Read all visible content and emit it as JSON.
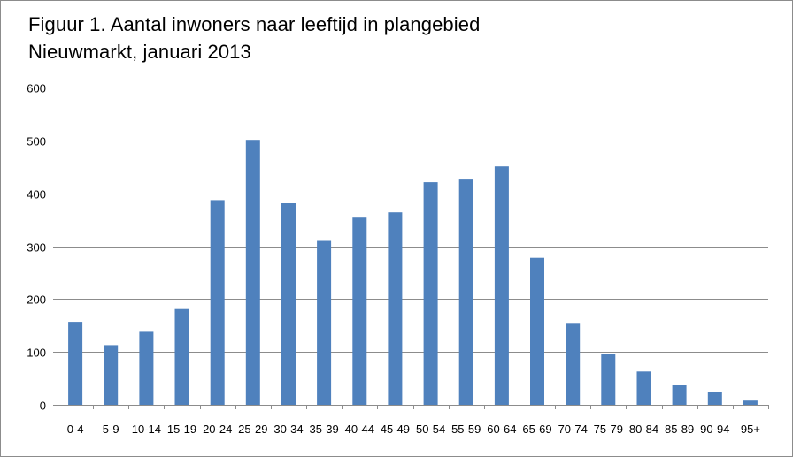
{
  "chart_data": {
    "type": "bar",
    "title": [
      "Figuur 1. Aantal inwoners naar leeftijd in plangebied",
      "Nieuwmarkt, januari 2013"
    ],
    "xlabel": "",
    "ylabel": "",
    "ylim": [
      0,
      600
    ],
    "yticks": [
      "0",
      "100",
      "200",
      "300",
      "400",
      "500",
      "600"
    ],
    "categories": [
      "0-4",
      "5-9",
      "10-14",
      "15-19",
      "20-24",
      "25-29",
      "30-34",
      "35-39",
      "40-44",
      "45-49",
      "50-54",
      "55-59",
      "60-64",
      "65-69",
      "70-74",
      "75-79",
      "80-84",
      "85-89",
      "90-94",
      "95+"
    ],
    "values": [
      157,
      113,
      138,
      181,
      387,
      501,
      381,
      310,
      354,
      364,
      421,
      426,
      451,
      278,
      155,
      96,
      63,
      37,
      24,
      8
    ],
    "grid": true,
    "legend": "none",
    "bar_color": "#4f81bd",
    "grid_color": "#8c8c8c"
  }
}
